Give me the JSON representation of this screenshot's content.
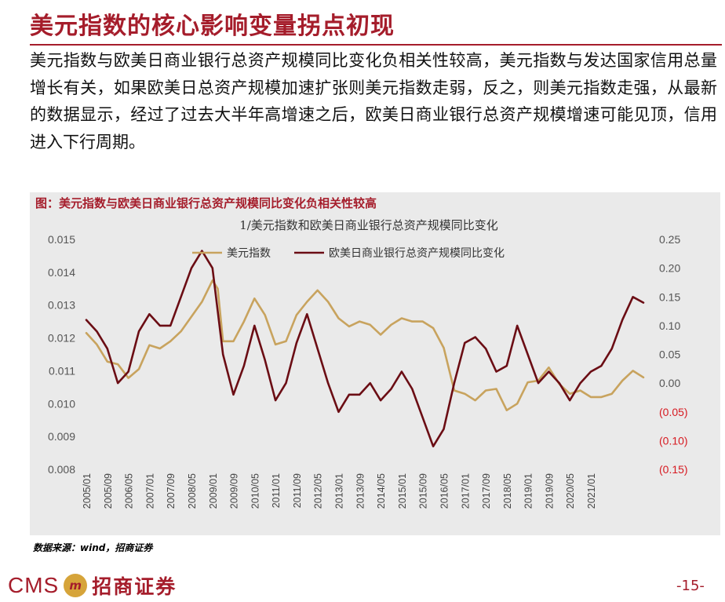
{
  "page": {
    "title": "美元指数的核心影响变量拐点初现",
    "paragraph": "美元指数与欧美日商业银行总资产规模同比变化负相关性较高，美元指数与发达国家信用总量增长有关，如果欧美日总资产规模加速扩张则美元指数走弱，反之，则美元指数走强，从最新的数据显示，经过了过去大半年高增速之后，欧美日商业银行总资产规模增速可能见顶，信用进入下行周期。",
    "figure_caption": "图：美元指数与欧美日商业银行总资产规模同比变化负相关性较高",
    "source": "数据来源：wind，招商证券",
    "brand_latin": "CMS",
    "brand_badge": "m",
    "brand_cn": "招商证券",
    "page_number": "-15-"
  },
  "chart_data": {
    "type": "line",
    "title": "1/美元指数和欧美日商业银行总资产规模同比变化",
    "colors": {
      "usd": "#c8a35e",
      "bank": "#6b0d14",
      "neg_label": "#d71920"
    },
    "left_axis": {
      "ylim": [
        0.008,
        0.015
      ],
      "ticks": [
        "0.015",
        "0.014",
        "0.013",
        "0.012",
        "0.011",
        "0.010",
        "0.009",
        "0.008"
      ]
    },
    "right_axis": {
      "ylim": [
        -0.15,
        0.25
      ],
      "ticks": [
        "0.25",
        "0.20",
        "0.15",
        "0.10",
        "0.05",
        "0.00",
        "(0.05)",
        "(0.10)",
        "(0.15)"
      ]
    },
    "x_ticks": [
      "2005/01",
      "2005/09",
      "2006/05",
      "2007/01",
      "2007/09",
      "2008/05",
      "2009/01",
      "2009/09",
      "2010/05",
      "2011/01",
      "2011/09",
      "2012/05",
      "2013/01",
      "2013/09",
      "2014/05",
      "2015/01",
      "2015/09",
      "2016/05",
      "2017/01",
      "2017/09",
      "2018/05",
      "2019/01",
      "2019/09",
      "2020/05",
      "2021/01"
    ],
    "series": [
      {
        "name": "美元指数",
        "axis": "left",
        "points": [
          [
            0,
            0.01215
          ],
          [
            1,
            0.0118
          ],
          [
            2,
            0.01128
          ],
          [
            3,
            0.0112
          ],
          [
            4,
            0.01078
          ],
          [
            5,
            0.01105
          ],
          [
            6,
            0.01178
          ],
          [
            7,
            0.01168
          ],
          [
            8,
            0.0119
          ],
          [
            9,
            0.0122
          ],
          [
            10,
            0.01265
          ],
          [
            11,
            0.0131
          ],
          [
            12,
            0.01375
          ],
          [
            12.5,
            0.0135
          ],
          [
            13,
            0.0119
          ],
          [
            14,
            0.0119
          ],
          [
            15,
            0.0125
          ],
          [
            16,
            0.0132
          ],
          [
            17,
            0.0127
          ],
          [
            18,
            0.0118
          ],
          [
            19,
            0.0119
          ],
          [
            20,
            0.0127
          ],
          [
            21,
            0.0131
          ],
          [
            22,
            0.01345
          ],
          [
            23,
            0.0131
          ],
          [
            24,
            0.0126
          ],
          [
            25,
            0.01235
          ],
          [
            26,
            0.0125
          ],
          [
            27,
            0.0124
          ],
          [
            28,
            0.0121
          ],
          [
            29,
            0.0124
          ],
          [
            30,
            0.0126
          ],
          [
            31,
            0.0125
          ],
          [
            32,
            0.0125
          ],
          [
            33,
            0.0123
          ],
          [
            34,
            0.0117
          ],
          [
            35,
            0.0104
          ],
          [
            36,
            0.0103
          ],
          [
            37,
            0.0101
          ],
          [
            38,
            0.0104
          ],
          [
            39,
            0.01045
          ],
          [
            40,
            0.0098
          ],
          [
            41,
            0.01
          ],
          [
            42,
            0.01065
          ],
          [
            43,
            0.0107
          ],
          [
            44,
            0.0111
          ],
          [
            45,
            0.0106
          ],
          [
            46,
            0.0103
          ],
          [
            47,
            0.0104
          ],
          [
            48,
            0.0102
          ],
          [
            49,
            0.0102
          ],
          [
            50,
            0.0103
          ],
          [
            51,
            0.0107
          ],
          [
            52,
            0.011
          ],
          [
            53,
            0.0108
          ]
        ]
      },
      {
        "name": "欧美日商业银行总资产规模同比变化",
        "axis": "right",
        "points": [
          [
            0,
            0.11
          ],
          [
            1,
            0.09
          ],
          [
            2,
            0.06
          ],
          [
            3,
            0.0
          ],
          [
            4,
            0.02
          ],
          [
            5,
            0.09
          ],
          [
            6,
            0.12
          ],
          [
            7,
            0.1
          ],
          [
            8,
            0.1
          ],
          [
            9,
            0.15
          ],
          [
            10,
            0.2
          ],
          [
            11,
            0.23
          ],
          [
            12,
            0.2
          ],
          [
            13,
            0.05
          ],
          [
            14,
            -0.02
          ],
          [
            15,
            0.03
          ],
          [
            16,
            0.1
          ],
          [
            17,
            0.04
          ],
          [
            18,
            -0.03
          ],
          [
            19,
            0.0
          ],
          [
            20,
            0.07
          ],
          [
            21,
            0.12
          ],
          [
            22,
            0.06
          ],
          [
            23,
            0.0
          ],
          [
            24,
            -0.05
          ],
          [
            25,
            -0.02
          ],
          [
            26,
            -0.02
          ],
          [
            27,
            0.0
          ],
          [
            28,
            -0.03
          ],
          [
            29,
            -0.01
          ],
          [
            30,
            0.02
          ],
          [
            31,
            -0.01
          ],
          [
            32,
            -0.06
          ],
          [
            33,
            -0.11
          ],
          [
            34,
            -0.08
          ],
          [
            35,
            0.0
          ],
          [
            36,
            0.07
          ],
          [
            37,
            0.08
          ],
          [
            38,
            0.06
          ],
          [
            39,
            0.02
          ],
          [
            40,
            0.03
          ],
          [
            41,
            0.1
          ],
          [
            42,
            0.05
          ],
          [
            43,
            0.0
          ],
          [
            44,
            0.02
          ],
          [
            45,
            0.0
          ],
          [
            46,
            -0.03
          ],
          [
            47,
            0.0
          ],
          [
            48,
            0.02
          ],
          [
            49,
            0.03
          ],
          [
            50,
            0.06
          ],
          [
            51,
            0.11
          ],
          [
            52,
            0.15
          ],
          [
            53,
            0.14
          ]
        ]
      }
    ],
    "x_count": 54
  }
}
